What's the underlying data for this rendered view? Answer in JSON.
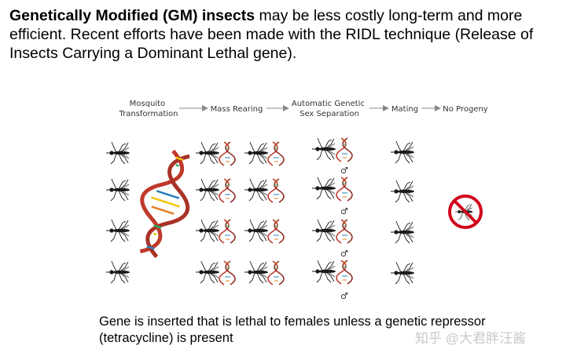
{
  "intro": {
    "bold": "Genetically Modified (GM) insects",
    "rest": " may be less costly long-term and more efficient.  Recent efforts have been made with the RIDL technique (Release of Insects Carrying a Dominant Lethal gene)."
  },
  "stages": {
    "transformation": [
      "Mosquito",
      "Transformation"
    ],
    "mass_rearing": "Mass Rearing",
    "sex_separation": [
      "Automatic Genetic",
      "Sex Separation"
    ],
    "mating": "Mating",
    "no_progeny": "No Progeny"
  },
  "male_symbol": "♂",
  "caption": "Gene is inserted that is lethal to females unless a genetic repressor (tetracycline) is present",
  "watermark": "知乎 @大君胖汪酱",
  "colors": {
    "dna_red": "#c0392b",
    "no_sign_red": "#d0021b",
    "arrow": "#888888"
  },
  "icons": [
    "mosquito-icon",
    "dna-icon",
    "no-progeny-icon"
  ]
}
